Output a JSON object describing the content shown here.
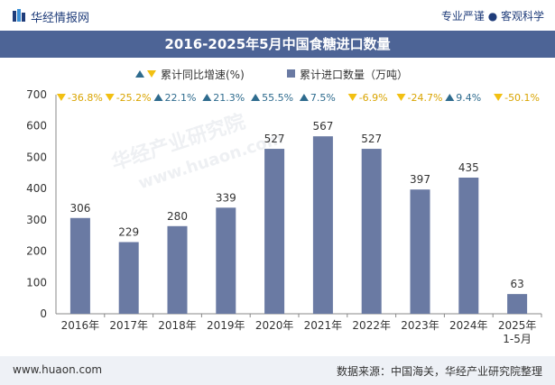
{
  "header": {
    "brand": "华经情报网",
    "slogan": "专业严谨 ● 客观科学"
  },
  "watermark": {
    "text1": "华经产业研究院",
    "text2": "www.huaon.com"
  },
  "footer": {
    "site": "www.huaon.com",
    "source": "数据来源：中国海关，华经产业研究院整理"
  },
  "colors": {
    "bar": "#6a7aa3",
    "title_bg": "#4d6496",
    "up": "#2e6b8e",
    "down": "#f2c012"
  },
  "chart_data": {
    "type": "bar",
    "title": "2016-2025年5月中国食糖进口数量",
    "categories": [
      "2016年",
      "2017年",
      "2018年",
      "2019年",
      "2020年",
      "2021年",
      "2022年",
      "2023年",
      "2024年",
      "2025年\n1-5月"
    ],
    "series": [
      {
        "name": "累计进口数量（万吨）",
        "values": [
          306,
          229,
          280,
          339,
          527,
          567,
          527,
          397,
          435,
          63
        ]
      }
    ],
    "growth": {
      "name": "累计同比增速(%)",
      "labels": [
        "-36.8%",
        "-25.2%",
        "22.1%",
        "21.3%",
        "55.5%",
        "7.5%",
        "-6.9%",
        "-24.7%",
        "9.4%",
        "-50.1%"
      ],
      "directions": [
        "down",
        "down",
        "up",
        "up",
        "up",
        "up",
        "down",
        "down",
        "up",
        "down"
      ]
    },
    "legend": [
      "累计同比增速(%)",
      "累计进口数量（万吨）"
    ],
    "ylim": [
      0,
      700
    ],
    "yticks": [
      "0",
      "100",
      "200",
      "300",
      "400",
      "500",
      "600",
      "700"
    ],
    "xlabel": "",
    "ylabel": ""
  }
}
